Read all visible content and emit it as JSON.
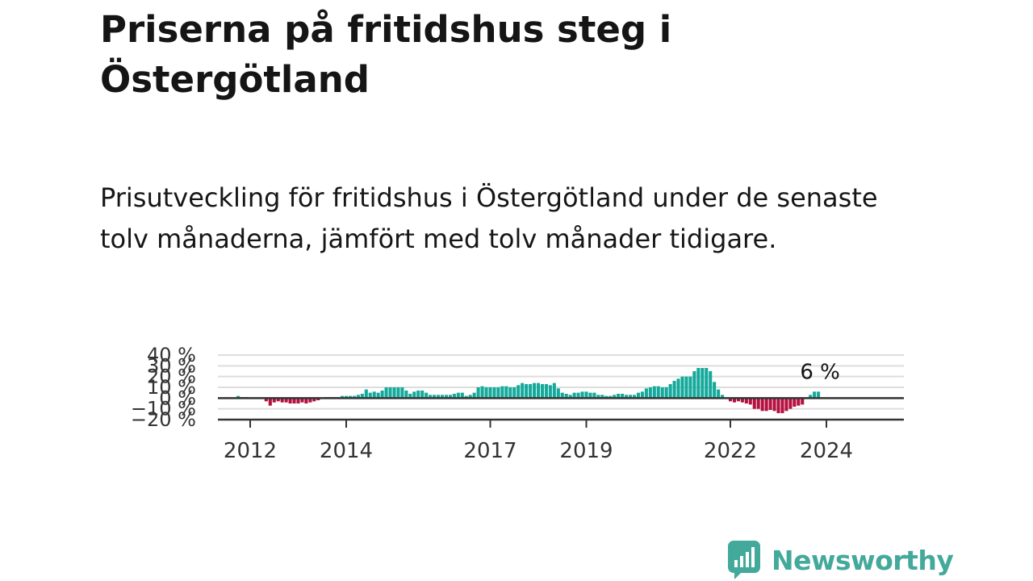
{
  "header": {
    "title": "Priserna på fritidshus steg i Östergötland",
    "subtitle": "Prisutveckling för fritidshus i Östergötland under de senaste tolv månaderna, jämfört med tolv månader tidigare."
  },
  "chart_data": {
    "type": "bar",
    "x_start": "2011-10",
    "interval": "month",
    "unit": "%",
    "values": [
      2,
      1,
      1,
      0,
      0,
      0,
      0,
      -3,
      -7,
      -4,
      -3,
      -4,
      -4,
      -5,
      -5,
      -5,
      -4,
      -5,
      -4,
      -3,
      -2,
      0,
      1,
      1,
      1,
      1,
      2,
      2,
      2,
      2,
      3,
      4,
      8,
      5,
      6,
      5,
      7,
      10,
      10,
      10,
      10,
      10,
      7,
      4,
      6,
      7,
      7,
      5,
      3,
      3,
      3,
      3,
      3,
      3,
      4,
      5,
      5,
      2,
      3,
      5,
      10,
      11,
      10,
      10,
      10,
      10,
      11,
      11,
      10,
      10,
      12,
      14,
      13,
      13,
      14,
      14,
      13,
      13,
      12,
      14,
      9,
      5,
      4,
      3,
      5,
      5,
      6,
      6,
      5,
      5,
      3,
      3,
      2,
      2,
      3,
      4,
      4,
      3,
      3,
      3,
      5,
      6,
      9,
      10,
      11,
      11,
      10,
      10,
      13,
      16,
      18,
      20,
      20,
      20,
      25,
      28,
      28,
      28,
      25,
      15,
      8,
      3,
      0,
      -3,
      -4,
      -3,
      -4,
      -5,
      -6,
      -10,
      -10,
      -12,
      -12,
      -11,
      -12,
      -14,
      -14,
      -12,
      -10,
      -8,
      -7,
      -6,
      0,
      3,
      6,
      6
    ],
    "ylim": [
      -20,
      40
    ],
    "yticks": [
      "40 %",
      "30 %",
      "20 %",
      "10 %",
      "0 %",
      "−10 %",
      "−20 %"
    ],
    "ytick_values": [
      40,
      30,
      20,
      10,
      0,
      -10,
      -20
    ],
    "xticks": [
      {
        "label": "2012",
        "date": "2012-01"
      },
      {
        "label": "2014",
        "date": "2014-01"
      },
      {
        "label": "2017",
        "date": "2017-01"
      },
      {
        "label": "2019",
        "date": "2019-01"
      },
      {
        "label": "2022",
        "date": "2022-01"
      },
      {
        "label": "2024",
        "date": "2024-01"
      }
    ],
    "end_label": "6 %",
    "grid": true,
    "colors": {
      "positive": "#13a99b",
      "negative": "#b5103f",
      "grid": "#dddddd",
      "zero_line": "#333333"
    }
  },
  "brand": {
    "logo_name": "Newsworthy",
    "logo_icon": "bar-chart-speech-icon",
    "color": "#43a99a"
  }
}
